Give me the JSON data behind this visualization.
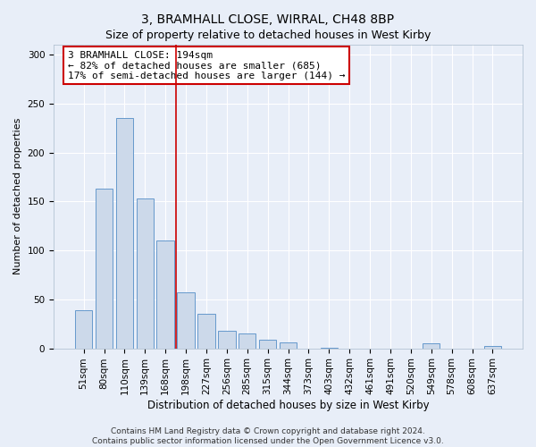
{
  "title": "3, BRAMHALL CLOSE, WIRRAL, CH48 8BP",
  "subtitle": "Size of property relative to detached houses in West Kirby",
  "xlabel": "Distribution of detached houses by size in West Kirby",
  "ylabel": "Number of detached properties",
  "bar_labels": [
    "51sqm",
    "80sqm",
    "110sqm",
    "139sqm",
    "168sqm",
    "198sqm",
    "227sqm",
    "256sqm",
    "285sqm",
    "315sqm",
    "344sqm",
    "373sqm",
    "403sqm",
    "432sqm",
    "461sqm",
    "491sqm",
    "520sqm",
    "549sqm",
    "578sqm",
    "608sqm",
    "637sqm"
  ],
  "bar_values": [
    39,
    163,
    235,
    153,
    110,
    57,
    35,
    18,
    15,
    9,
    6,
    0,
    1,
    0,
    0,
    0,
    0,
    5,
    0,
    0,
    2
  ],
  "bar_color": "#ccd9ea",
  "bar_edge_color": "#6699cc",
  "bar_width": 0.85,
  "ylim": [
    0,
    310
  ],
  "yticks": [
    0,
    50,
    100,
    150,
    200,
    250,
    300
  ],
  "vline_x": 4.5,
  "vline_color": "#cc0000",
  "annotation_text": "3 BRAMHALL CLOSE: 194sqm\n← 82% of detached houses are smaller (685)\n17% of semi-detached houses are larger (144) →",
  "annotation_box_color": "#ffffff",
  "annotation_box_edge_color": "#cc0000",
  "footer_line1": "Contains HM Land Registry data © Crown copyright and database right 2024.",
  "footer_line2": "Contains public sector information licensed under the Open Government Licence v3.0.",
  "background_color": "#e8eef8",
  "plot_bg_color": "#e8eef8",
  "grid_color": "#ffffff",
  "title_fontsize": 10,
  "xlabel_fontsize": 8.5,
  "ylabel_fontsize": 8,
  "tick_fontsize": 7.5,
  "footer_fontsize": 6.5,
  "annotation_fontsize": 8
}
